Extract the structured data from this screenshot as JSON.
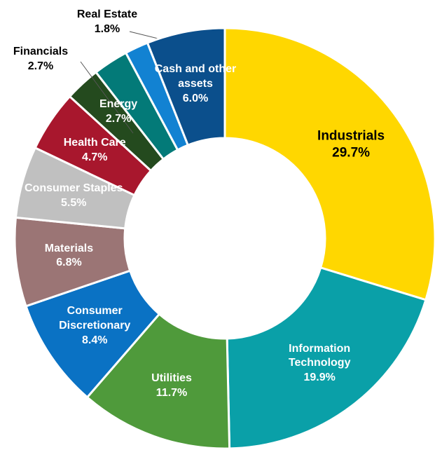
{
  "chart_data": {
    "type": "donut",
    "categories": [
      "Industrials",
      "Information Technology",
      "Utilities",
      "Consumer Discretionary",
      "Materials",
      "Consumer Staples",
      "Health Care",
      "Energy",
      "Financials",
      "Real Estate",
      "Cash and other assets"
    ],
    "values": [
      29.7,
      19.9,
      11.7,
      8.4,
      6.8,
      5.5,
      4.7,
      2.7,
      2.7,
      1.8,
      6.0
    ],
    "value_labels": [
      "29.7%",
      "19.9%",
      "11.7%",
      "8.4%",
      "6.8%",
      "5.5%",
      "4.7%",
      "2.7%",
      "2.7%",
      "1.8%",
      "6.0%"
    ],
    "colors": [
      "#ffd700",
      "#0aa0a8",
      "#4f9a3b",
      "#0a72c4",
      "#9b7575",
      "#c0c0c0",
      "#a8172d",
      "#244a1e",
      "#037a78",
      "#1282d2",
      "#0b4f8c"
    ]
  }
}
